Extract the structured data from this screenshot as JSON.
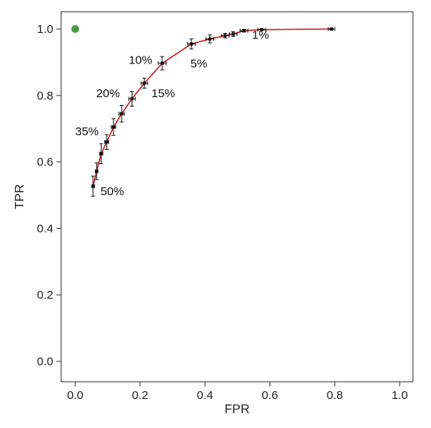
{
  "chart_data": {
    "type": "line",
    "xlabel": "FPR",
    "ylabel": "TPR",
    "xlim": [
      0,
      1
    ],
    "ylim": [
      0,
      1
    ],
    "x_ticks": [
      "0.0",
      "0.2",
      "0.4",
      "0.6",
      "0.8",
      "1.0"
    ],
    "y_ticks": [
      "0.0",
      "0.2",
      "0.4",
      "0.6",
      "0.8",
      "1.0"
    ],
    "grid": false,
    "colors": {
      "curve": "#cc2222",
      "errorbar": "#111111",
      "ideal_point": "#4a9a4a"
    },
    "series": [
      {
        "points": [
          {
            "x": 0.055,
            "y": 0.527,
            "xerr": 0.004,
            "yerr": 0.03
          },
          {
            "x": 0.066,
            "y": 0.572,
            "xerr": 0.004,
            "yerr": 0.025
          },
          {
            "x": 0.08,
            "y": 0.625,
            "xerr": 0.005,
            "yerr": 0.03
          },
          {
            "x": 0.097,
            "y": 0.66,
            "xerr": 0.006,
            "yerr": 0.022
          },
          {
            "x": 0.118,
            "y": 0.705,
            "xerr": 0.007,
            "yerr": 0.025
          },
          {
            "x": 0.143,
            "y": 0.745,
            "xerr": 0.008,
            "yerr": 0.025
          },
          {
            "x": 0.175,
            "y": 0.79,
            "xerr": 0.01,
            "yerr": 0.022
          },
          {
            "x": 0.213,
            "y": 0.837,
            "xerr": 0.01,
            "yerr": 0.015
          },
          {
            "x": 0.268,
            "y": 0.897,
            "xerr": 0.012,
            "yerr": 0.02
          },
          {
            "x": 0.358,
            "y": 0.955,
            "xerr": 0.012,
            "yerr": 0.015
          },
          {
            "x": 0.415,
            "y": 0.97,
            "xerr": 0.012,
            "yerr": 0.012
          },
          {
            "x": 0.462,
            "y": 0.98,
            "xerr": 0.012,
            "yerr": 0.007
          },
          {
            "x": 0.487,
            "y": 0.985,
            "xerr": 0.012,
            "yerr": 0.007
          },
          {
            "x": 0.52,
            "y": 0.995,
            "xerr": 0.012,
            "yerr": 0.004
          },
          {
            "x": 0.575,
            "y": 0.998,
            "xerr": 0.012,
            "yerr": 0.002
          },
          {
            "x": 0.79,
            "y": 1.0,
            "xerr": 0.01,
            "yerr": 0.001
          }
        ]
      }
    ],
    "ideal_point": {
      "x": 0.0,
      "y": 1.0
    },
    "annotations": [
      {
        "text": "50%",
        "x": 0.078,
        "y": 0.5
      },
      {
        "text": "35%",
        "x": 0.0,
        "y": 0.68
      },
      {
        "text": "20%",
        "x": 0.065,
        "y": 0.795
      },
      {
        "text": "15%",
        "x": 0.235,
        "y": 0.795
      },
      {
        "text": "10%",
        "x": 0.165,
        "y": 0.895
      },
      {
        "text": "5%",
        "x": 0.355,
        "y": 0.885
      },
      {
        "text": "1%",
        "x": 0.545,
        "y": 0.97
      }
    ]
  }
}
